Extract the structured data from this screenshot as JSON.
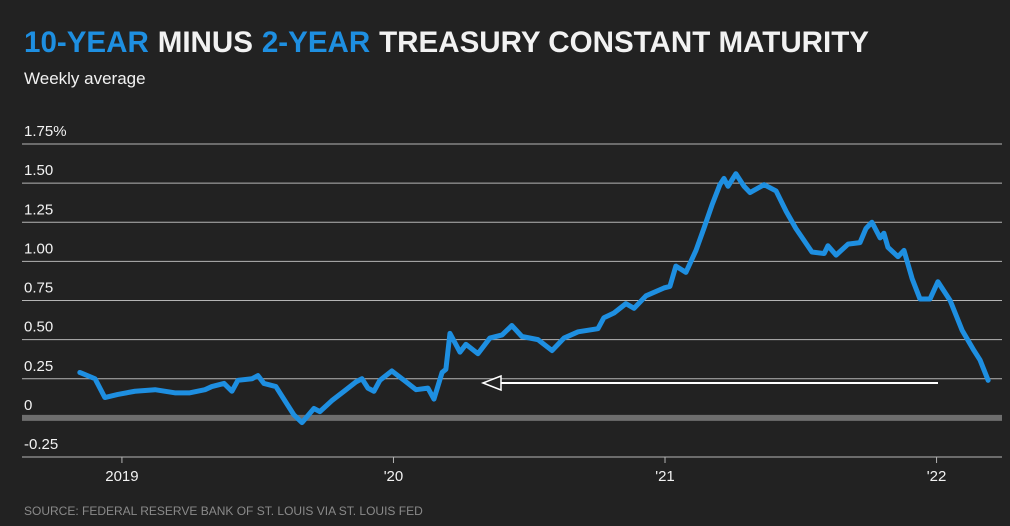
{
  "chart_data": {
    "type": "line",
    "title": [
      {
        "text": "10-YEAR",
        "highlight": true
      },
      {
        "text": "MINUS",
        "highlight": false
      },
      {
        "text": "2-YEAR",
        "highlight": true
      },
      {
        "text": "TREASURY CONSTANT MATURITY",
        "highlight": false
      }
    ],
    "title_highlight_color": "#1e8fe1",
    "subtitle": "Weekly average",
    "source": "SOURCE: FEDERAL RESERVE BANK OF ST. LOUIS VIA ST. LOUIS FED",
    "color": "#1e8fe1",
    "x": [
      2018.845,
      2018.901,
      2018.937,
      2018.985,
      2019.048,
      2019.122,
      2019.195,
      2019.25,
      2019.306,
      2019.331,
      2019.376,
      2019.405,
      2019.427,
      2019.479,
      2019.501,
      2019.523,
      2019.567,
      2019.611,
      2019.633,
      2019.663,
      2019.707,
      2019.729,
      2019.773,
      2019.818,
      2019.862,
      2019.884,
      2019.906,
      2019.928,
      2019.95,
      2019.994,
      2020.039,
      2020.083,
      2020.127,
      2020.149,
      2020.179,
      2020.193,
      2020.208,
      2020.245,
      2020.267,
      2020.311,
      2020.355,
      2020.4,
      2020.436,
      2020.473,
      2020.532,
      2020.584,
      2020.628,
      2020.68,
      2020.753,
      2020.775,
      2020.812,
      2020.856,
      2020.886,
      2020.93,
      2020.996,
      2021.018,
      2021.04,
      2021.077,
      2021.114,
      2021.143,
      2021.173,
      2021.202,
      2021.217,
      2021.232,
      2021.261,
      2021.291,
      2021.313,
      2021.365,
      2021.409,
      2021.446,
      2021.482,
      2021.541,
      2021.586,
      2021.6,
      2021.63,
      2021.674,
      2021.718,
      2021.74,
      2021.762,
      2021.792,
      2021.806,
      2021.821,
      2021.858,
      2021.88,
      2021.91,
      2021.939,
      2021.976,
      2022.005,
      2022.05,
      2022.094,
      2022.138,
      2022.16,
      2022.19
    ],
    "values": [
      0.29,
      0.25,
      0.13,
      0.15,
      0.17,
      0.18,
      0.16,
      0.16,
      0.18,
      0.2,
      0.22,
      0.17,
      0.24,
      0.25,
      0.27,
      0.22,
      0.2,
      0.08,
      0.02,
      -0.03,
      0.06,
      0.04,
      0.11,
      0.17,
      0.23,
      0.25,
      0.19,
      0.17,
      0.24,
      0.3,
      0.24,
      0.18,
      0.19,
      0.12,
      0.29,
      0.31,
      0.54,
      0.42,
      0.47,
      0.41,
      0.51,
      0.53,
      0.59,
      0.52,
      0.5,
      0.43,
      0.51,
      0.55,
      0.57,
      0.64,
      0.67,
      0.73,
      0.7,
      0.78,
      0.83,
      0.84,
      0.97,
      0.93,
      1.07,
      1.21,
      1.36,
      1.49,
      1.53,
      1.48,
      1.56,
      1.48,
      1.44,
      1.49,
      1.45,
      1.32,
      1.21,
      1.06,
      1.05,
      1.1,
      1.04,
      1.11,
      1.12,
      1.21,
      1.25,
      1.15,
      1.18,
      1.09,
      1.03,
      1.07,
      0.89,
      0.76,
      0.76,
      0.87,
      0.75,
      0.56,
      0.43,
      0.37,
      0.24
    ],
    "xlim": [
      2018.632,
      2022.241
    ],
    "xticks": [
      {
        "value": 2019,
        "label": "2019"
      },
      {
        "value": 2020,
        "label": "'20"
      },
      {
        "value": 2021,
        "label": "'21"
      },
      {
        "value": 2022,
        "label": "'22"
      }
    ],
    "ylim": [
      -0.25,
      1.75
    ],
    "yticks": [
      {
        "value": 1.75,
        "label": "1.75%"
      },
      {
        "value": 1.5,
        "label": "1.50"
      },
      1.25,
      {
        "value": 1.0,
        "label": "1.00"
      },
      0.75,
      {
        "value": 0.5,
        "label": "0.50"
      },
      0.25,
      0,
      -0.25
    ],
    "grid": true
  }
}
